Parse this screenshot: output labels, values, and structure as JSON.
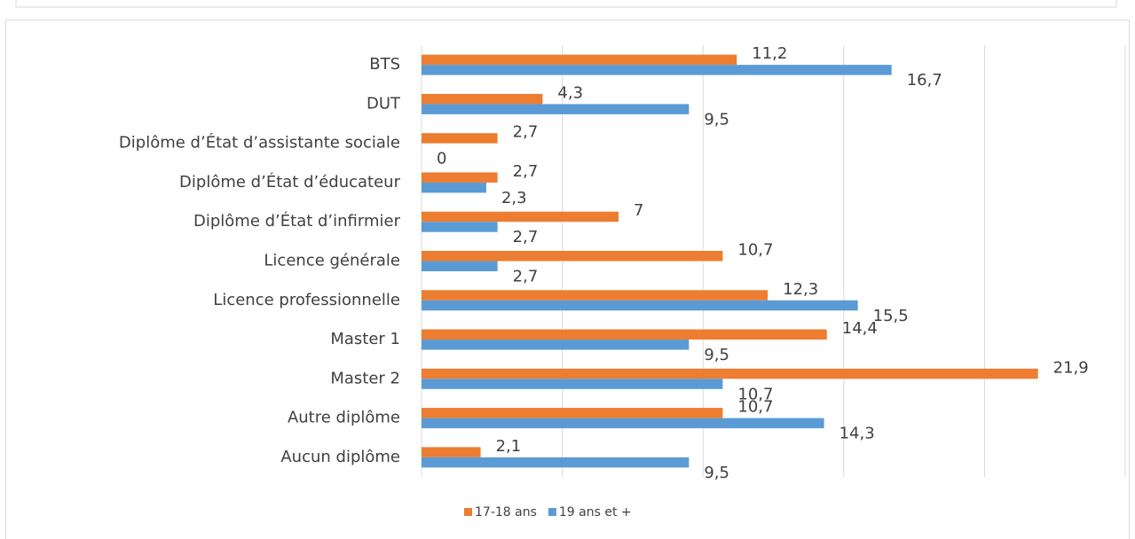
{
  "chart_data": {
    "type": "hbar",
    "categories": [
      "BTS",
      "DUT",
      "Diplôme d’État d’assistante sociale",
      "Diplôme d’État d’éducateur",
      "Diplôme d’État d’infirmier",
      "Licence générale",
      "Licence professionnelle",
      "Master 1",
      "Master 2",
      "Autre diplôme",
      "Aucun diplôme"
    ],
    "series": [
      {
        "name": "17-18 ans",
        "color": "#ED7D31",
        "values": [
          11.2,
          4.3,
          2.7,
          2.7,
          7,
          10.7,
          12.3,
          14.4,
          21.9,
          10.7,
          2.1
        ],
        "value_labels": [
          "11,2",
          "4,3",
          "2,7",
          "2,7",
          "7",
          "10,7",
          "12,3",
          "14,4",
          "21,9",
          "10,7",
          "2,1"
        ]
      },
      {
        "name": "19 ans et +",
        "color": "#5B9BD5",
        "values": [
          16.7,
          9.5,
          0,
          2.3,
          2.7,
          2.7,
          15.5,
          9.5,
          10.7,
          14.3,
          9.5
        ],
        "value_labels": [
          "16,7",
          "9,5",
          "0",
          "2,3",
          "2,7",
          "2,7",
          "15,5",
          "9,5",
          "10,7",
          "14,3",
          "9,5"
        ]
      }
    ],
    "xlim": [
      0,
      25
    ],
    "xticks": [
      0,
      5,
      10,
      15,
      20,
      25
    ],
    "grid": true,
    "legend": "bottom"
  }
}
